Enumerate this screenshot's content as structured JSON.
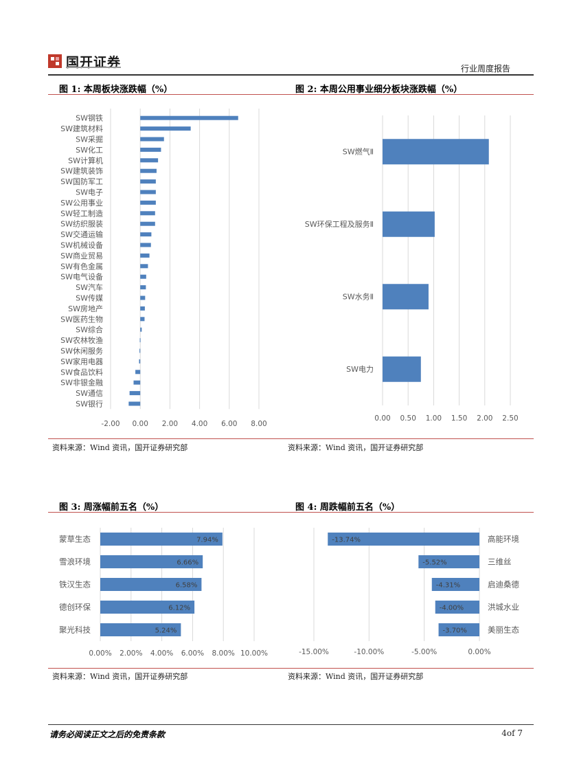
{
  "header": {
    "company_name": "国开证券",
    "report_type": "行业周度报告",
    "colors": {
      "red": "#c0504d",
      "bar": "#4f81bd"
    }
  },
  "figures": [
    {
      "title": "图 1:  本周板块涨跌幅（%）",
      "source": "资料来源：Wind 资讯，国开证券研究部"
    },
    {
      "title": "图 2:  本周公用事业细分板块涨跌幅（%）",
      "source": "资料来源：Wind 资讯，国开证券研究部"
    },
    {
      "title": "图 3:  周涨幅前五名（%）",
      "source": "资料来源：Wind 资讯，国开证券研究部"
    },
    {
      "title": "图 4:  周跌幅前五名（%）",
      "source": "资料来源：Wind 资讯，国开证券研究部"
    }
  ],
  "footer": {
    "disclaimer": "请务必阅读正文之后的免责条款",
    "page": "4of 7"
  },
  "chart_data": [
    {
      "type": "bar",
      "orientation": "horizontal",
      "categories": [
        "SW钢铁",
        "SW建筑材料",
        "SW采掘",
        "SW化工",
        "SW计算机",
        "SW建筑装饰",
        "SW国防军工",
        "SW电子",
        "SW公用事业",
        "SW轻工制造",
        "SW纺织服装",
        "SW交通运输",
        "SW机械设备",
        "SW商业贸易",
        "SW有色金属",
        "SW电气设备",
        "SW汽车",
        "SW传媒",
        "SW房地产",
        "SW医药生物",
        "SW综合",
        "SW农林牧渔",
        "SW休闲服务",
        "SW家用电器",
        "SW食品饮料",
        "SW非银金融",
        "SW通信",
        "SW银行"
      ],
      "values": [
        6.6,
        3.4,
        1.6,
        1.4,
        1.2,
        1.1,
        1.05,
        1.05,
        1.05,
        1.0,
        1.0,
        0.75,
        0.72,
        0.62,
        0.52,
        0.4,
        0.38,
        0.33,
        0.31,
        0.29,
        0.1,
        -0.03,
        -0.05,
        -0.08,
        -0.33,
        -0.45,
        -0.72,
        -0.78
      ],
      "xlim": [
        -2,
        8
      ],
      "xticks": [
        "-2.00",
        "0.00",
        "2.00",
        "4.00",
        "6.00",
        "8.00"
      ],
      "grid": true
    },
    {
      "type": "bar",
      "orientation": "horizontal",
      "categories": [
        "SW燃气Ⅱ",
        "SW环保工程及服务Ⅱ",
        "SW水务Ⅱ",
        "SW电力"
      ],
      "values": [
        2.08,
        1.02,
        0.9,
        0.75
      ],
      "xlim": [
        0,
        2.5
      ],
      "xticks": [
        "0.00",
        "0.50",
        "1.00",
        "1.50",
        "2.00",
        "2.50"
      ],
      "grid": true
    },
    {
      "type": "bar",
      "orientation": "horizontal",
      "categories": [
        "蒙草生态",
        "雪浪环境",
        "铁汉生态",
        "德创环保",
        "聚光科技"
      ],
      "values": [
        7.94,
        6.66,
        6.58,
        6.12,
        5.24
      ],
      "labels": [
        "7.94%",
        "6.66%",
        "6.58%",
        "6.12%",
        "5.24%"
      ],
      "xlim": [
        0,
        10
      ],
      "xticks": [
        "0.00%",
        "2.00%",
        "4.00%",
        "6.00%",
        "8.00%",
        "10.00%"
      ],
      "grid": true
    },
    {
      "type": "bar",
      "orientation": "horizontal",
      "categories": [
        "高能环境",
        "三维丝",
        "启迪桑德",
        "洪城水业",
        "美丽生态"
      ],
      "values": [
        -13.74,
        -5.52,
        -4.31,
        -4.0,
        -3.7
      ],
      "labels": [
        "-13.74%",
        "-5.52%",
        "-4.31%",
        "-4.00%",
        "-3.70%"
      ],
      "xlim": [
        -15,
        0
      ],
      "xticks": [
        "-15.00%",
        "-10.00%",
        "-5.00%",
        "0.00%"
      ],
      "grid": true
    }
  ]
}
